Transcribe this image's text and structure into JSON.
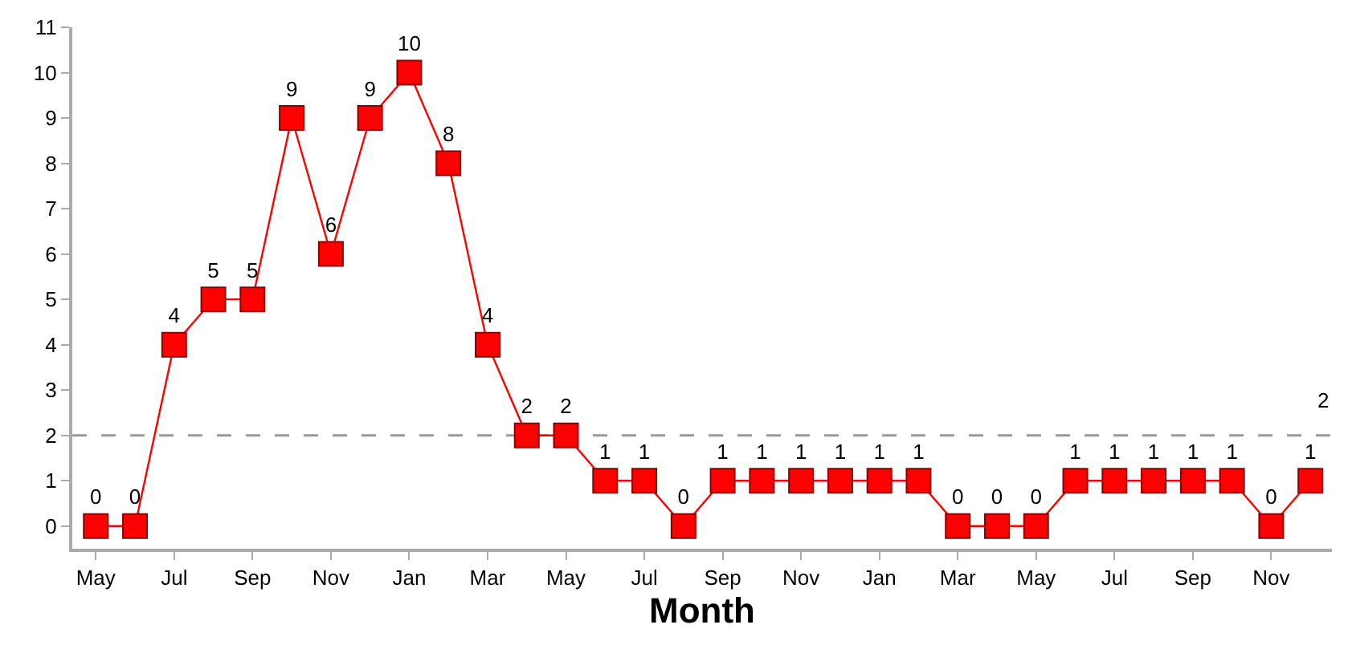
{
  "chart_data": {
    "type": "line",
    "xlabel": "Month",
    "categories": [
      "May",
      null,
      "Jul",
      null,
      "Sep",
      null,
      "Nov",
      null,
      "Jan",
      null,
      "Mar",
      null,
      "May",
      null,
      "Jul",
      null,
      "Sep",
      null,
      "Nov",
      null,
      "Jan",
      null,
      "Mar",
      null,
      "May",
      null,
      "Jul",
      null,
      "Sep",
      null,
      "Nov",
      null
    ],
    "series": [
      {
        "color": "#ff0000",
        "values": [
          0,
          0,
          4,
          5,
          5,
          9,
          6,
          9,
          10,
          8,
          4,
          2,
          2,
          1,
          1,
          0,
          1,
          1,
          1,
          1,
          1,
          1,
          0,
          0,
          0,
          1,
          1,
          1,
          1,
          1,
          0,
          1
        ]
      }
    ],
    "ylim": [
      -0.5,
      11
    ],
    "yticks": [
      0,
      1,
      2,
      3,
      4,
      5,
      6,
      7,
      8,
      9,
      10,
      11
    ],
    "ref_lines": [
      {
        "axis": "y",
        "value": 2,
        "label": "2",
        "color": "#999999",
        "line_style": "dashed"
      }
    ],
    "data_labels": true,
    "marker": "square",
    "line_style": "solid",
    "grid": false
  }
}
